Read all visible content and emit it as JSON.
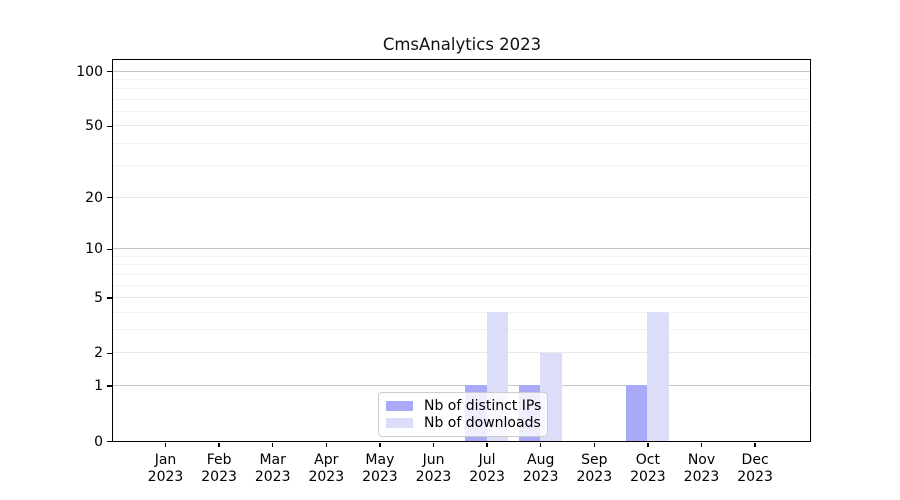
{
  "chart_data": {
    "type": "bar",
    "title": "CmsAnalytics 2023",
    "categories": [
      "Jan",
      "Feb",
      "Mar",
      "Apr",
      "May",
      "Jun",
      "Jul",
      "Aug",
      "Sep",
      "Oct",
      "Nov",
      "Dec"
    ],
    "x_year_label": "2023",
    "series": [
      {
        "name": "Nb of distinct IPs",
        "color": "#a8a9f7",
        "values": [
          0,
          0,
          0,
          0,
          0,
          0,
          1,
          1,
          0,
          1,
          0,
          0
        ]
      },
      {
        "name": "Nb of downloads",
        "color": "#dcddf9",
        "values": [
          0,
          0,
          0,
          0,
          0,
          0,
          4,
          2,
          0,
          4,
          0,
          0
        ]
      }
    ],
    "y_axis": {
      "scale": "log1p",
      "tick_values": [
        0,
        1,
        2,
        5,
        10,
        20,
        50,
        100
      ],
      "decade_gridlines": [
        1,
        10,
        100
      ],
      "labeled_gridlines": [
        2,
        5,
        20,
        50
      ],
      "minor_gridlines": [
        3,
        4,
        6,
        7,
        8,
        9,
        30,
        40,
        60,
        70,
        80,
        90
      ],
      "range": [
        0,
        115
      ]
    },
    "legend": {
      "position": "lower center"
    },
    "colors": {
      "spine": "#000000",
      "decade_grid": "#c6c6c6",
      "labeled_grid": "#e9e9e9",
      "minor_grid": "#f2f2f2"
    },
    "grid": "on"
  }
}
